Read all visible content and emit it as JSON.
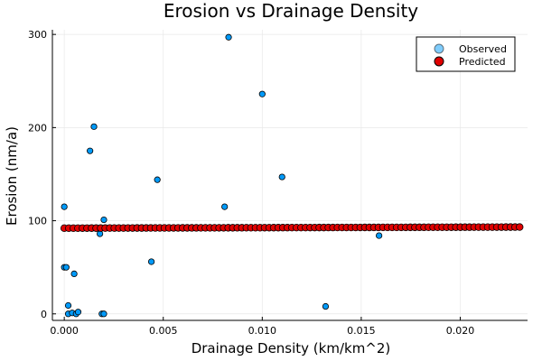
{
  "chart_data": {
    "type": "scatter",
    "title": "Erosion vs Drainage Density",
    "xlabel": "Drainage Density (km/km^2)",
    "ylabel": "Erosion (nm/a)",
    "xlim": [
      -0.0006,
      0.0234
    ],
    "ylim": [
      -7,
      305
    ],
    "xticks": [
      0.0,
      0.005,
      0.01,
      0.015,
      0.02
    ],
    "xtick_labels": [
      "0.000",
      "0.005",
      "0.010",
      "0.015",
      "0.020"
    ],
    "yticks": [
      0,
      100,
      200,
      300
    ],
    "ytick_labels": [
      "0",
      "100",
      "200",
      "300"
    ],
    "grid": true,
    "legend_position": "top-right",
    "series": [
      {
        "name": "Observed",
        "color": "#009af9",
        "marker": "circle",
        "x": [
          0.0,
          0.0,
          0.0001,
          0.0002,
          0.0002,
          0.0004,
          0.0005,
          0.0006,
          0.0007,
          0.0013,
          0.0015,
          0.0018,
          0.0019,
          0.002,
          0.002,
          0.0044,
          0.0047,
          0.0081,
          0.0083,
          0.01,
          0.011,
          0.0132,
          0.0159
        ],
        "y": [
          115,
          50,
          50,
          9,
          0,
          1,
          43,
          0,
          2,
          175,
          201,
          86,
          0,
          101,
          0,
          56,
          144,
          115,
          297,
          236,
          147,
          8,
          84
        ]
      },
      {
        "name": "Predicted",
        "color": "#e00000",
        "marker": "circle",
        "x_start": 0.0,
        "x_end": 0.023,
        "count": 101,
        "y_start": 92.0,
        "y_end": 93.2
      }
    ]
  }
}
